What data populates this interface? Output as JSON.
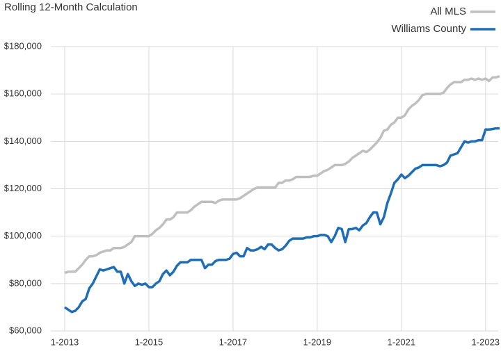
{
  "chart_data": {
    "type": "line",
    "title": "Rolling 12-Month Calculation",
    "categories": [
      "1-2013",
      "2-2013",
      "3-2013",
      "4-2013",
      "5-2013",
      "6-2013",
      "7-2013",
      "8-2013",
      "9-2013",
      "10-2013",
      "11-2013",
      "12-2013",
      "1-2014",
      "2-2014",
      "3-2014",
      "4-2014",
      "5-2014",
      "6-2014",
      "7-2014",
      "8-2014",
      "9-2014",
      "10-2014",
      "11-2014",
      "12-2014",
      "1-2015",
      "2-2015",
      "3-2015",
      "4-2015",
      "5-2015",
      "6-2015",
      "7-2015",
      "8-2015",
      "9-2015",
      "10-2015",
      "11-2015",
      "12-2015",
      "1-2016",
      "2-2016",
      "3-2016",
      "4-2016",
      "5-2016",
      "6-2016",
      "7-2016",
      "8-2016",
      "9-2016",
      "10-2016",
      "11-2016",
      "12-2016",
      "1-2017",
      "2-2017",
      "3-2017",
      "4-2017",
      "5-2017",
      "6-2017",
      "7-2017",
      "8-2017",
      "9-2017",
      "10-2017",
      "11-2017",
      "12-2017",
      "1-2018",
      "2-2018",
      "3-2018",
      "4-2018",
      "5-2018",
      "6-2018",
      "7-2018",
      "8-2018",
      "9-2018",
      "10-2018",
      "11-2018",
      "12-2018",
      "1-2019",
      "2-2019",
      "3-2019",
      "4-2019",
      "5-2019",
      "6-2019",
      "7-2019",
      "8-2019",
      "9-2019",
      "10-2019",
      "11-2019",
      "12-2019",
      "1-2020",
      "2-2020",
      "3-2020",
      "4-2020",
      "5-2020",
      "6-2020",
      "7-2020",
      "8-2020",
      "9-2020",
      "10-2020",
      "11-2020",
      "12-2020",
      "1-2021",
      "2-2021",
      "3-2021",
      "4-2021",
      "5-2021",
      "6-2021",
      "7-2021",
      "8-2021",
      "9-2021",
      "10-2021",
      "11-2021",
      "12-2021",
      "1-2022",
      "2-2022",
      "3-2022",
      "4-2022",
      "5-2022",
      "6-2022",
      "7-2022",
      "8-2022",
      "9-2022",
      "10-2022",
      "11-2022",
      "12-2022",
      "1-2023",
      "2-2023",
      "3-2023",
      "4-2023",
      "5-2023"
    ],
    "xticks": [
      "1-2013",
      "1-2015",
      "1-2017",
      "1-2019",
      "1-2021",
      "1-2023"
    ],
    "series": [
      {
        "name": "All MLS",
        "color": "#bfbfbf",
        "values": [
          84500,
          85000,
          85000,
          85000,
          86500,
          88000,
          90000,
          91500,
          91500,
          92000,
          93000,
          93500,
          94000,
          94000,
          95000,
          95000,
          95000,
          95500,
          96500,
          97500,
          100000,
          100000,
          100000,
          100000,
          100000,
          101000,
          102500,
          103500,
          105000,
          107000,
          107000,
          108000,
          110000,
          110000,
          110000,
          110000,
          111000,
          112500,
          113500,
          114500,
          114500,
          114500,
          114500,
          114000,
          115000,
          115500,
          115500,
          115500,
          115500,
          115500,
          116000,
          117000,
          118000,
          119000,
          120000,
          120500,
          120500,
          120500,
          120500,
          120500,
          120500,
          122500,
          122500,
          123500,
          123500,
          124000,
          125000,
          125000,
          125000,
          125000,
          125000,
          125500,
          125500,
          126500,
          127500,
          128000,
          129000,
          130000,
          130000,
          130000,
          130500,
          131500,
          133000,
          134000,
          135000,
          136000,
          135500,
          136500,
          138000,
          139500,
          141500,
          144500,
          145000,
          147000,
          148000,
          150000,
          150000,
          151000,
          153500,
          155000,
          156000,
          157500,
          159500,
          160000,
          160000,
          160000,
          160000,
          160000,
          160500,
          162500,
          164000,
          165000,
          165000,
          165000,
          166000,
          166000,
          166500,
          166000,
          166500,
          166000,
          166500,
          165500,
          167000,
          167000,
          167500
        ]
      },
      {
        "name": "Williams County",
        "color": "#1f6eb5",
        "values": [
          70000,
          69000,
          68000,
          68500,
          70000,
          72500,
          73500,
          78000,
          80000,
          83000,
          86000,
          85500,
          86000,
          86500,
          87000,
          85000,
          85000,
          80000,
          84000,
          81000,
          79000,
          80000,
          79500,
          80000,
          78500,
          78500,
          80000,
          81000,
          84000,
          85500,
          83500,
          85000,
          87500,
          89000,
          89000,
          89000,
          90000,
          90000,
          90000,
          90000,
          86500,
          88000,
          88000,
          89500,
          90000,
          90000,
          90000,
          90500,
          92500,
          93000,
          91500,
          91500,
          95000,
          94000,
          94000,
          94500,
          95500,
          94500,
          96500,
          96500,
          95000,
          94000,
          94500,
          96000,
          98000,
          99000,
          99000,
          99000,
          99000,
          99500,
          99500,
          100000,
          100000,
          100500,
          100500,
          100000,
          97500,
          100000,
          103500,
          103000,
          97500,
          103000,
          103000,
          103500,
          102500,
          104500,
          105500,
          108000,
          110000,
          110000,
          105000,
          108000,
          114000,
          118000,
          122500,
          124000,
          126000,
          124500,
          125500,
          127000,
          128500,
          129000,
          130000,
          130000,
          130000,
          130000,
          130000,
          129500,
          130000,
          131000,
          134000,
          134500,
          135000,
          137500,
          140000,
          139500,
          140000,
          140000,
          140500,
          140500,
          145000,
          145000,
          145200,
          145500,
          145500
        ]
      }
    ],
    "ylim": [
      60000,
      180000
    ],
    "yticks": [
      {
        "value": 60000,
        "label": "$60,000"
      },
      {
        "value": 80000,
        "label": "$80,000"
      },
      {
        "value": 100000,
        "label": "$100,000"
      },
      {
        "value": 120000,
        "label": "$120,000"
      },
      {
        "value": 140000,
        "label": "$140,000"
      },
      {
        "value": 160000,
        "label": "$160,000"
      },
      {
        "value": 180000,
        "label": "$180,000"
      }
    ],
    "grid": true,
    "legend": "top-right"
  }
}
